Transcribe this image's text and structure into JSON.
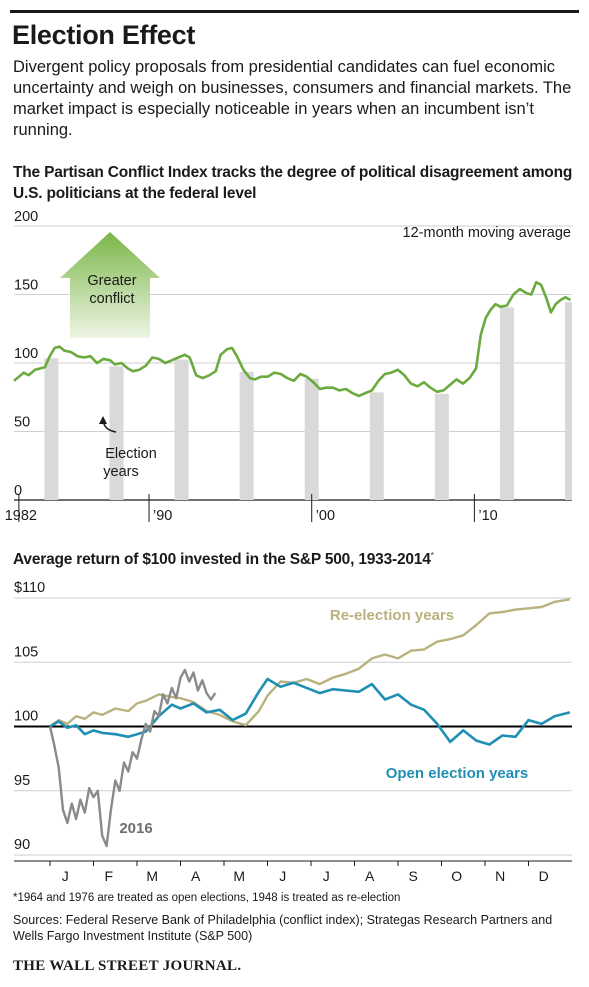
{
  "headline": "Election Effect",
  "dek": "Divergent policy proposals from presidential candidates can fuel economic uncertainty and weigh on businesses, consumers and financial markets. The market impact is especially noticeable in years when an incumbent isn’t running.",
  "footnote": "*1964 and 1976 are treated as open elections, 1948 is treated as re-election",
  "sources": "Sources: Federal Reserve Bank of Philadelphia (conflict index); Strategas Research Partners and Wells Fargo Investment Institute (S&P 500)",
  "publisher": "THE WALL STREET JOURNAL.",
  "colors": {
    "conflict_line": "#6aaa3e",
    "election_bar": "#d9d9d9",
    "arrow_top": "#7ab648",
    "arrow_bottom": "#eef5e4",
    "reelection": "#b9b27e",
    "open": "#1f8fb3",
    "y2016": "#8a8a8a",
    "baseline": "#000000"
  },
  "chart_data": [
    {
      "type": "line",
      "title": "The Partisan Conflict Index tracks the degree of political disagreement among U.S. politicians at the federal level",
      "note": "12-month moving average",
      "x_ticks": [
        "1982",
        "’90",
        "’00",
        "’10"
      ],
      "x_tick_values": [
        1982,
        1990,
        2000,
        2010
      ],
      "xlim": [
        1981.7,
        2016.0
      ],
      "ylim": [
        0,
        200
      ],
      "y_ticks": [
        "0",
        "50",
        "100",
        "150",
        "200"
      ],
      "y_tick_values": [
        0,
        50,
        100,
        150,
        200
      ],
      "grid": true,
      "annotations": {
        "arrow_label": "Greater conflict",
        "bar_label": "Election years"
      },
      "election_years": [
        1984,
        1988,
        1992,
        1996,
        2000,
        2004,
        2008,
        2012,
        2016
      ],
      "series": [
        {
          "x": [
            1981.7,
            1982.0,
            1982.3,
            1982.6,
            1983.0,
            1983.3,
            1983.6,
            1983.9,
            1984.2,
            1984.5,
            1984.8,
            1985.2,
            1985.6,
            1986.0,
            1986.4,
            1986.8,
            1987.2,
            1987.6,
            1987.9,
            1988.3,
            1988.7,
            1989.0,
            1989.4,
            1989.8,
            1990.2,
            1990.6,
            1991.0,
            1991.4,
            1991.8,
            1992.2,
            1992.5,
            1992.9,
            1993.3,
            1993.7,
            1994.1,
            1994.4,
            1994.8,
            1995.1,
            1995.4,
            1995.8,
            1996.2,
            1996.5,
            1996.9,
            1997.3,
            1997.7,
            1998.1,
            1998.5,
            1998.9,
            1999.3,
            1999.7,
            2000.1,
            2000.5,
            2000.9,
            2001.3,
            2001.7,
            2002.1,
            2002.5,
            2002.9,
            2003.3,
            2003.7,
            2004.1,
            2004.5,
            2004.9,
            2005.3,
            2005.7,
            2006.1,
            2006.5,
            2006.9,
            2007.3,
            2007.7,
            2008.1,
            2008.5,
            2008.9,
            2009.3,
            2009.7,
            2010.1,
            2010.4,
            2010.7,
            2011.0,
            2011.3,
            2011.6,
            2012.0,
            2012.4,
            2012.8,
            2013.2,
            2013.5,
            2013.8,
            2014.1,
            2014.4,
            2014.7,
            2015.0,
            2015.3,
            2015.6,
            2015.9
          ],
          "y": [
            87,
            90,
            93,
            91,
            95,
            96,
            97,
            105,
            111,
            112,
            109,
            108,
            105,
            104,
            105,
            100,
            103,
            102,
            99,
            100,
            96,
            94,
            95,
            98,
            104,
            103,
            100,
            102,
            104,
            106,
            104,
            91,
            89,
            91,
            94,
            106,
            110,
            111,
            105,
            95,
            89,
            88,
            90,
            90,
            93,
            92,
            89,
            87,
            92,
            90,
            86,
            81,
            82,
            82,
            80,
            81,
            78,
            76,
            78,
            80,
            87,
            92,
            93,
            95,
            91,
            85,
            83,
            86,
            82,
            79,
            80,
            84,
            88,
            85,
            89,
            96,
            121,
            133,
            139,
            143,
            141,
            142,
            150,
            154,
            151,
            150,
            159,
            157,
            148,
            137,
            143,
            146,
            148,
            146
          ]
        }
      ]
    },
    {
      "type": "line",
      "title": "Average return of $100 invested in the S&P 500, 1933-2014*",
      "x_ticks": [
        "J",
        "F",
        "M",
        "A",
        "M",
        "J",
        "J",
        "A",
        "S",
        "O",
        "N",
        "D"
      ],
      "xlim": [
        0,
        12
      ],
      "ylim": [
        90,
        110
      ],
      "y_ticks": [
        "90",
        "95",
        "100",
        "105",
        "$110"
      ],
      "y_tick_values": [
        90,
        95,
        100,
        105,
        110
      ],
      "grid": true,
      "baseline": 100,
      "series": [
        {
          "name": "Re-election years",
          "x": [
            0,
            0.2,
            0.4,
            0.6,
            0.8,
            1.0,
            1.2,
            1.5,
            1.8,
            2.0,
            2.2,
            2.5,
            2.8,
            3.0,
            3.3,
            3.6,
            3.9,
            4.2,
            4.5,
            4.8,
            5.0,
            5.3,
            5.6,
            5.9,
            6.2,
            6.5,
            6.8,
            7.1,
            7.4,
            7.7,
            8.0,
            8.3,
            8.6,
            8.9,
            9.2,
            9.5,
            9.8,
            10.1,
            10.4,
            10.7,
            11.0,
            11.3,
            11.6,
            11.95
          ],
          "y": [
            100.0,
            100.5,
            100.2,
            100.8,
            100.6,
            101.1,
            100.9,
            101.4,
            101.2,
            101.8,
            102.0,
            102.5,
            102.3,
            102.2,
            101.9,
            101.2,
            100.9,
            100.4,
            100.1,
            101.2,
            102.4,
            103.5,
            103.4,
            103.7,
            103.3,
            103.8,
            104.1,
            104.5,
            105.3,
            105.6,
            105.3,
            105.9,
            106.0,
            106.6,
            106.8,
            107.1,
            107.9,
            108.8,
            108.9,
            109.1,
            109.2,
            109.3,
            109.7,
            109.9
          ]
        },
        {
          "name": "Open election years",
          "x": [
            0,
            0.2,
            0.4,
            0.6,
            0.8,
            1.0,
            1.2,
            1.5,
            1.8,
            2.0,
            2.2,
            2.5,
            2.8,
            3.0,
            3.3,
            3.6,
            3.9,
            4.2,
            4.5,
            4.8,
            5.0,
            5.3,
            5.6,
            5.9,
            6.2,
            6.5,
            6.8,
            7.1,
            7.4,
            7.7,
            8.0,
            8.3,
            8.6,
            8.9,
            9.2,
            9.5,
            9.8,
            10.1,
            10.4,
            10.7,
            11.0,
            11.3,
            11.6,
            11.95
          ],
          "y": [
            100.0,
            100.4,
            99.9,
            100.1,
            99.4,
            99.7,
            99.5,
            99.4,
            99.2,
            99.4,
            99.6,
            100.8,
            101.7,
            101.4,
            101.8,
            101.1,
            101.3,
            100.5,
            101.0,
            102.7,
            103.7,
            103.1,
            103.4,
            103.0,
            102.6,
            102.9,
            102.8,
            102.7,
            103.3,
            102.1,
            102.5,
            101.7,
            101.3,
            100.2,
            98.8,
            99.7,
            98.9,
            98.6,
            99.3,
            99.2,
            100.5,
            100.2,
            100.8,
            101.1
          ]
        },
        {
          "name": "2016",
          "x": [
            0,
            0.1,
            0.2,
            0.3,
            0.4,
            0.5,
            0.6,
            0.7,
            0.8,
            0.9,
            1.0,
            1.1,
            1.2,
            1.3,
            1.4,
            1.5,
            1.6,
            1.7,
            1.8,
            1.9,
            2.0,
            2.1,
            2.2,
            2.3,
            2.4,
            2.5,
            2.6,
            2.7,
            2.8,
            2.9,
            3.0,
            3.1,
            3.2,
            3.3,
            3.4,
            3.5,
            3.6,
            3.7,
            3.8
          ],
          "y": [
            100.0,
            98.5,
            96.8,
            93.5,
            92.5,
            94.0,
            92.8,
            94.3,
            93.3,
            95.2,
            94.5,
            95.0,
            91.5,
            90.7,
            93.5,
            95.8,
            95.0,
            97.2,
            96.5,
            98.0,
            97.5,
            99.0,
            100.2,
            99.6,
            101.2,
            100.8,
            102.5,
            101.8,
            103.0,
            102.2,
            103.8,
            104.4,
            103.5,
            104.2,
            102.8,
            103.6,
            102.6,
            102.1,
            102.6
          ]
        }
      ]
    }
  ]
}
